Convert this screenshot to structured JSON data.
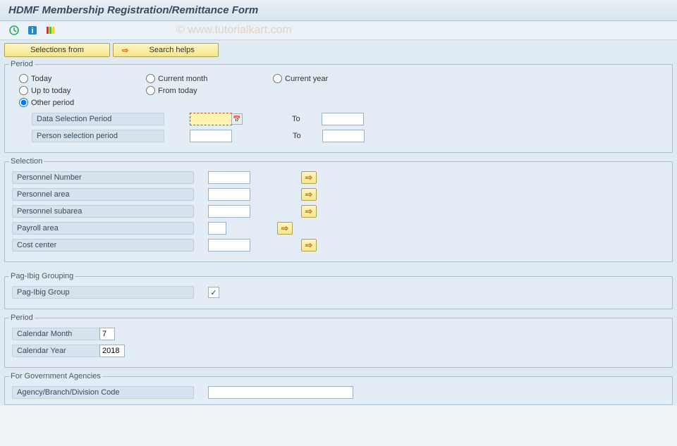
{
  "header": {
    "title": "HDMF Membership Registration/Remittance Form"
  },
  "toolbar": {
    "buttons": [
      {
        "name": "execute",
        "icon": "clock"
      },
      {
        "name": "info",
        "icon": "info"
      },
      {
        "name": "variant",
        "icon": "bars"
      }
    ]
  },
  "watermark": "© www.tutorialkart.com",
  "action_buttons": {
    "selections_from": "Selections from",
    "search_helps": "Search helps"
  },
  "period_group": {
    "legend": "Period",
    "options": {
      "today": "Today",
      "current_month": "Current month",
      "current_year": "Current year",
      "up_to_today": "Up to today",
      "from_today": "From today",
      "other_period": "Other period"
    },
    "selected": "other_period",
    "data_sel_label": "Data Selection Period",
    "data_sel_from": "",
    "data_sel_to": "",
    "person_sel_label": "Person selection period",
    "person_sel_from": "",
    "person_sel_to": "",
    "to_label": "To"
  },
  "selection_group": {
    "legend": "Selection",
    "rows": [
      {
        "label": "Personnel Number",
        "value": "",
        "width": "w60"
      },
      {
        "label": "Personnel area",
        "value": "",
        "width": "w60"
      },
      {
        "label": "Personnel subarea",
        "value": "",
        "width": "w60"
      },
      {
        "label": "Payroll area",
        "value": "",
        "width": "w30"
      },
      {
        "label": "Cost center",
        "value": "",
        "width": "w60"
      }
    ]
  },
  "pagibig_group": {
    "legend": "Pag-Ibig Grouping",
    "label": "Pag-Ibig Group",
    "checked": true,
    "checkmark": "✓"
  },
  "period2_group": {
    "legend": "Period",
    "month_label": "Calendar Month",
    "month_value": "7",
    "year_label": "Calendar Year",
    "year_value": "2018"
  },
  "gov_group": {
    "legend": "For Government Agencies",
    "label": "Agency/Branch/Division Code",
    "value": ""
  },
  "colors": {
    "accent_yellow": "#f5e68b",
    "panel_bg": "#e4edf5",
    "border": "#a8bdd1"
  }
}
